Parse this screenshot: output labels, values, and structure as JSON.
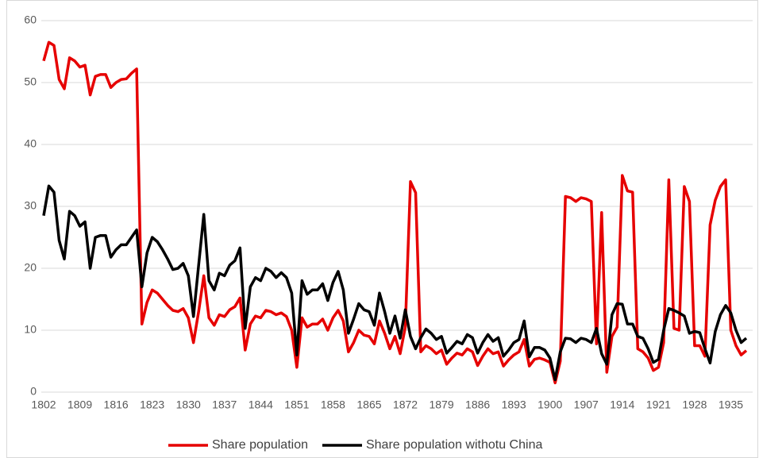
{
  "chart_data": {
    "type": "line",
    "x": [
      1802,
      1803,
      1804,
      1805,
      1806,
      1807,
      1808,
      1809,
      1810,
      1811,
      1812,
      1813,
      1814,
      1815,
      1816,
      1817,
      1818,
      1819,
      1820,
      1821,
      1822,
      1823,
      1824,
      1825,
      1826,
      1827,
      1828,
      1829,
      1830,
      1831,
      1832,
      1833,
      1834,
      1835,
      1836,
      1837,
      1838,
      1839,
      1840,
      1841,
      1842,
      1843,
      1844,
      1845,
      1846,
      1847,
      1848,
      1849,
      1850,
      1851,
      1852,
      1853,
      1854,
      1855,
      1856,
      1857,
      1858,
      1859,
      1860,
      1861,
      1862,
      1863,
      1864,
      1865,
      1866,
      1867,
      1868,
      1869,
      1870,
      1871,
      1872,
      1873,
      1874,
      1875,
      1876,
      1877,
      1878,
      1879,
      1880,
      1881,
      1882,
      1883,
      1884,
      1885,
      1886,
      1887,
      1888,
      1889,
      1890,
      1891,
      1892,
      1893,
      1894,
      1895,
      1896,
      1897,
      1898,
      1899,
      1900,
      1901,
      1902,
      1903,
      1904,
      1905,
      1906,
      1907,
      1908,
      1909,
      1910,
      1911,
      1912,
      1913,
      1914,
      1915,
      1916,
      1917,
      1918,
      1919,
      1920,
      1921,
      1922,
      1923,
      1924,
      1925,
      1926,
      1927,
      1928,
      1929,
      1930,
      1931,
      1932,
      1933,
      1934,
      1935,
      1936,
      1937,
      1938
    ],
    "series": [
      {
        "name": "Share population",
        "color": "#e60000",
        "values": [
          53.5,
          56.5,
          56,
          50.5,
          49,
          54,
          53.5,
          52.5,
          52.8,
          48,
          51,
          51.3,
          51.3,
          49.2,
          50,
          50.5,
          50.6,
          51.5,
          52.2,
          11,
          14.5,
          16.5,
          16,
          15,
          14,
          13.2,
          13,
          13.5,
          12,
          8,
          13,
          18.8,
          12,
          10.8,
          12.5,
          12.2,
          13.3,
          13.8,
          15.2,
          6.8,
          11,
          12.3,
          12,
          13.2,
          13,
          12.5,
          12.8,
          12.2,
          10,
          4,
          12,
          10.5,
          11,
          11,
          11.8,
          10,
          12,
          13.2,
          11.5,
          6.5,
          8,
          10,
          9.2,
          9,
          7.8,
          11.5,
          9.5,
          7,
          9,
          6.2,
          10.5,
          34,
          32.2,
          6.5,
          7.5,
          7,
          6.2,
          6.8,
          4.5,
          5.5,
          6.3,
          6,
          7,
          6.5,
          4.3,
          5.8,
          7,
          6.2,
          6.5,
          4.2,
          5.2,
          6,
          6.5,
          8.5,
          4.2,
          5.3,
          5.5,
          5.2,
          4.8,
          1.5,
          5,
          31.6,
          31.4,
          30.8,
          31.4,
          31.2,
          30.8,
          7.8,
          29,
          3.2,
          9,
          10.5,
          35,
          32.5,
          32.3,
          7,
          6.5,
          5.5,
          3.5,
          4,
          8,
          34.3,
          10.3,
          10,
          33.2,
          30.8,
          7.5,
          7.5,
          5.8,
          27,
          31,
          33.2,
          34.3,
          10,
          7.5,
          6,
          6.7
        ]
      },
      {
        "name": "Share population withotu China",
        "color": "#000000",
        "values": [
          28.5,
          33.3,
          32.3,
          24.5,
          21.5,
          29.2,
          28.5,
          26.8,
          27.5,
          20,
          25,
          25.3,
          25.3,
          21.8,
          23,
          23.8,
          23.8,
          25,
          26.2,
          17,
          22.5,
          25,
          24.3,
          23,
          21.5,
          19.8,
          20,
          20.8,
          18.8,
          12.2,
          20.5,
          28.7,
          18,
          16.5,
          19.2,
          18.8,
          20.5,
          21.2,
          23.3,
          10.3,
          17,
          18.5,
          18,
          20,
          19.5,
          18.5,
          19.3,
          18.5,
          16,
          6,
          18,
          15.8,
          16.5,
          16.5,
          17.5,
          14.8,
          17.7,
          19.5,
          16.5,
          9.5,
          11.8,
          14.3,
          13.3,
          13,
          10.8,
          16,
          13,
          9.5,
          12.3,
          8.7,
          13.3,
          9,
          7,
          8.8,
          10.2,
          9.5,
          8.5,
          9,
          6.3,
          7.2,
          8.2,
          7.8,
          9.3,
          8.8,
          6.3,
          8,
          9.3,
          8.2,
          8.8,
          5.8,
          6.8,
          8,
          8.5,
          11.5,
          5.7,
          7.2,
          7.2,
          6.8,
          5.5,
          2,
          6.5,
          8.7,
          8.6,
          8,
          8.7,
          8.5,
          8,
          10.3,
          6.2,
          4.5,
          12.5,
          14.3,
          14.2,
          11,
          11,
          9,
          8.7,
          7,
          4.8,
          5.3,
          10,
          13.5,
          13.2,
          12.8,
          12.3,
          9.5,
          9.8,
          9.6,
          7,
          4.7,
          9.8,
          12.5,
          14,
          12.8,
          10,
          8,
          8.7
        ]
      }
    ],
    "xlim": [
      1800,
      1940
    ],
    "xticks": [
      1802,
      1809,
      1816,
      1823,
      1830,
      1837,
      1844,
      1851,
      1858,
      1865,
      1872,
      1879,
      1886,
      1893,
      1900,
      1907,
      1914,
      1921,
      1928,
      1935
    ],
    "ylim": [
      0,
      60
    ],
    "yticks": [
      0,
      10,
      20,
      30,
      40,
      50,
      60
    ],
    "grid": true,
    "legend": "bottom"
  }
}
